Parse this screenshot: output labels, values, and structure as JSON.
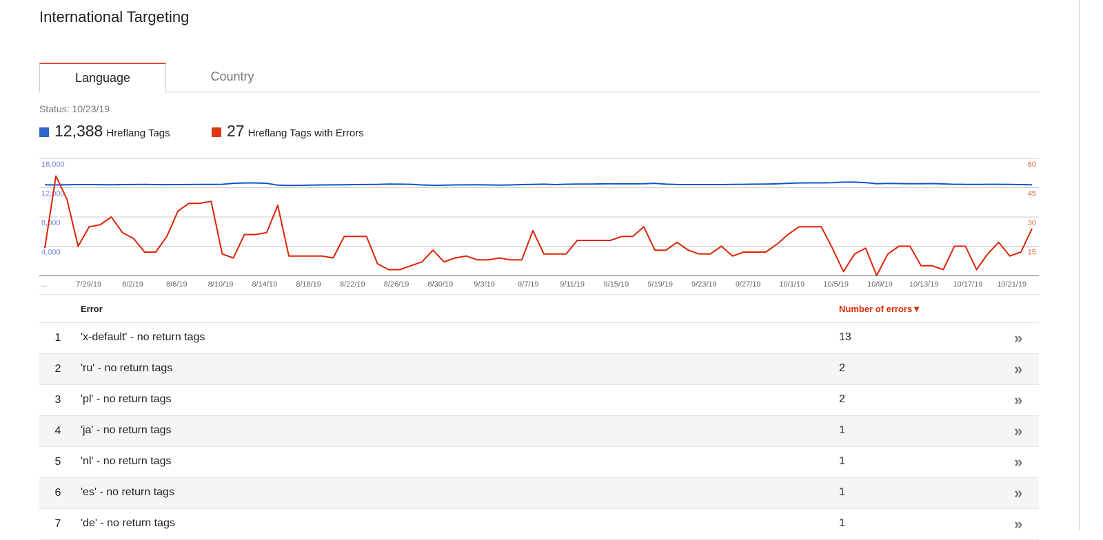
{
  "page": {
    "title": "International Targeting"
  },
  "tabs": [
    {
      "label": "Language",
      "active": true
    },
    {
      "label": "Country",
      "active": false
    }
  ],
  "status": "Status: 10/23/19",
  "legend": [
    {
      "value": "12,388",
      "label": "Hreflang Tags",
      "color": "#3366cc"
    },
    {
      "value": "27",
      "label": "Hreflang Tags with Errors",
      "color": "#dc3912"
    }
  ],
  "chart_data": {
    "type": "line",
    "x_ticks": [
      "...",
      "7/29/19",
      "8/2/19",
      "8/6/19",
      "8/10/19",
      "8/14/19",
      "8/18/19",
      "8/22/19",
      "8/26/19",
      "8/30/19",
      "9/3/19",
      "9/7/19",
      "9/11/19",
      "9/15/19",
      "9/19/19",
      "9/23/19",
      "9/27/19",
      "10/1/19",
      "10/5/19",
      "10/9/19",
      "10/13/19",
      "10/17/19",
      "10/21/19"
    ],
    "x_start": "7/25/19",
    "x_end": "10/22/19",
    "left_axis": {
      "ticks": [
        "4,000",
        "8,000",
        "12,000",
        "16,000"
      ],
      "range": [
        0,
        16000
      ],
      "color": "#3366cc"
    },
    "right_axis": {
      "ticks": [
        "15",
        "30",
        "45",
        "60"
      ],
      "range": [
        0,
        60
      ],
      "color": "#dc3912"
    },
    "grid": true,
    "series": [
      {
        "name": "Hreflang Tags",
        "axis": "left",
        "color": "#1155cc",
        "values": [
          12400,
          12380,
          12400,
          12420,
          12420,
          12410,
          12400,
          12420,
          12430,
          12440,
          12420,
          12410,
          12420,
          12430,
          12440,
          12440,
          12460,
          12600,
          12650,
          12650,
          12600,
          12350,
          12300,
          12320,
          12360,
          12380,
          12390,
          12400,
          12420,
          12430,
          12450,
          12500,
          12480,
          12460,
          12380,
          12330,
          12340,
          12380,
          12390,
          12400,
          12380,
          12360,
          12380,
          12420,
          12450,
          12480,
          12420,
          12470,
          12490,
          12500,
          12520,
          12540,
          12530,
          12530,
          12540,
          12600,
          12480,
          12430,
          12420,
          12420,
          12420,
          12420,
          12440,
          12460,
          12480,
          12500,
          12530,
          12600,
          12650,
          12660,
          12660,
          12690,
          12760,
          12760,
          12700,
          12550,
          12580,
          12560,
          12540,
          12540,
          12560,
          12520,
          12460,
          12450,
          12450,
          12460,
          12460,
          12440,
          12420,
          12400
        ]
      },
      {
        "name": "Hreflang Tags with Errors",
        "axis": "right",
        "color": "#dd2200",
        "values": [
          14,
          51,
          39,
          15,
          25,
          26,
          30,
          22,
          19,
          12,
          12,
          20,
          33,
          37,
          37,
          38,
          11,
          9,
          21,
          21,
          22,
          36,
          10,
          10,
          10,
          10,
          9,
          20,
          20,
          20,
          6,
          3,
          3,
          5,
          7,
          13,
          7,
          9,
          10,
          8,
          8,
          9,
          8,
          8,
          23,
          11,
          11,
          11,
          18,
          18,
          18,
          18,
          20,
          20,
          25,
          13,
          13,
          17,
          13,
          11,
          11,
          15,
          10,
          12,
          12,
          12,
          16,
          21,
          25,
          25,
          25,
          14,
          2,
          11,
          14,
          0,
          11,
          15,
          15,
          5,
          5,
          3,
          15,
          15,
          3,
          11,
          17,
          10,
          12,
          24
        ]
      }
    ]
  },
  "table": {
    "headers": {
      "error": "Error",
      "count": "Number of errors",
      "sort_icon": "▼"
    },
    "rows": [
      {
        "index": "1",
        "error": "'x-default' - no return tags",
        "count": "13"
      },
      {
        "index": "2",
        "error": "'ru' - no return tags",
        "count": "2"
      },
      {
        "index": "3",
        "error": "'pl' - no return tags",
        "count": "2"
      },
      {
        "index": "4",
        "error": "'ja' - no return tags",
        "count": "1"
      },
      {
        "index": "5",
        "error": "'nl' - no return tags",
        "count": "1"
      },
      {
        "index": "6",
        "error": "'es' - no return tags",
        "count": "1"
      },
      {
        "index": "7",
        "error": "'de' - no return tags",
        "count": "1"
      }
    ],
    "row_action_icon": "»"
  }
}
